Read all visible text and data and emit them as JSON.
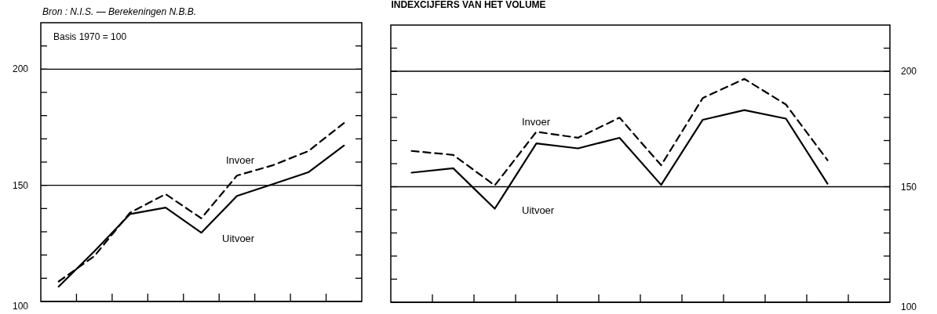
{
  "chart_data": [
    {
      "type": "line",
      "annotations": [
        "Bron : N.I.S. — Berekeningen N.B.B.",
        "Basis 1970 = 100"
      ],
      "categories": [
        null,
        null,
        null,
        null,
        null,
        null,
        null,
        null,
        null
      ],
      "series": [
        {
          "name": "Invoer",
          "color": "#000000",
          "line_style": "dashed",
          "values": [
            108.6,
            119.5,
            138.2,
            146.2,
            135.8,
            154.2,
            158.6,
            164.7,
            176.8
          ]
        },
        {
          "name": "Uitvoer",
          "color": "#000000",
          "line_style": "solid",
          "values": [
            106.4,
            121.6,
            137.6,
            140.4,
            129.6,
            145.4,
            150.5,
            155.6,
            167.1
          ]
        }
      ],
      "ylim": [
        100,
        220
      ],
      "yticks": [
        100,
        {
          "value": 110,
          "label": null
        },
        {
          "value": 120,
          "label": null
        },
        {
          "value": 130,
          "label": null
        },
        {
          "value": 140,
          "label": null
        },
        150,
        {
          "value": 160,
          "label": null
        },
        {
          "value": 170,
          "label": null
        },
        {
          "value": 180,
          "label": null
        },
        {
          "value": 190,
          "label": null
        },
        200,
        {
          "value": 210,
          "label": null
        }
      ],
      "grid": "y"
    },
    {
      "type": "line",
      "title": "INDEXCIJFERS VAN HET VOLUME",
      "categories": [
        null,
        null,
        null,
        null,
        null,
        null,
        null,
        null,
        null,
        null,
        null,
        null
      ],
      "series": [
        {
          "name": "Invoer",
          "color": "#000000",
          "line_style": "dashed",
          "values": [
            165.5,
            163.8,
            150.6,
            173.8,
            171.2,
            179.9,
            159.3,
            188.4,
            196.7,
            185.6,
            161.5,
            null
          ]
        },
        {
          "name": "Uitvoer",
          "color": "#000000",
          "line_style": "solid",
          "values": [
            156.1,
            158.0,
            140.5,
            168.8,
            166.6,
            171.2,
            150.8,
            179.0,
            183.2,
            179.5,
            151.3,
            null
          ]
        }
      ],
      "ylim": [
        100,
        220
      ],
      "yticks": [
        100,
        {
          "value": 110,
          "label": null
        },
        {
          "value": 120,
          "label": null
        },
        {
          "value": 130,
          "label": null
        },
        {
          "value": 140,
          "label": null
        },
        150,
        {
          "value": 160,
          "label": null
        },
        {
          "value": 170,
          "label": null
        },
        {
          "value": 180,
          "label": null
        },
        {
          "value": 190,
          "label": null
        },
        200,
        {
          "value": 210,
          "label": null
        }
      ],
      "grid": "y"
    }
  ]
}
